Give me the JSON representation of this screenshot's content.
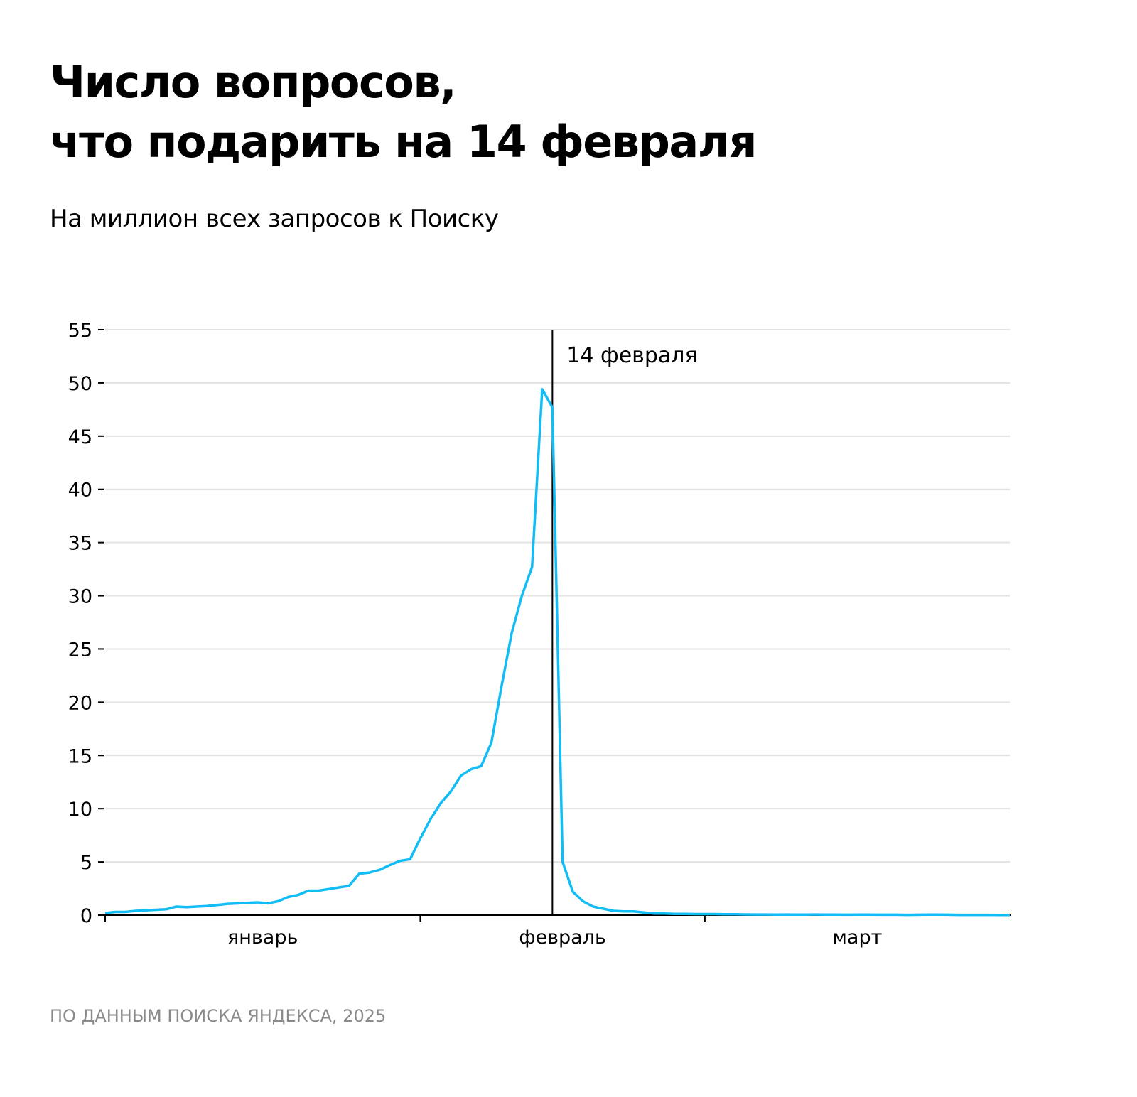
{
  "header": {
    "title_line1": "Число вопросов,",
    "title_line2": "что подарить на 14 февраля",
    "subtitle": "На миллион всех запросов к Поиску"
  },
  "footer": {
    "source": "ПО ДАННЫМ ПОИСКА ЯНДЕКСА, 2025"
  },
  "colors": {
    "line": "#12bdf6",
    "grid": "#e3e3e3",
    "axis": "#000000"
  },
  "chart_data": {
    "type": "line",
    "title": "Число вопросов, что подарить на 14 февраля",
    "subtitle": "На миллион всех запросов к Поиску",
    "xlabel": "",
    "ylabel": "",
    "ylim": [
      0,
      55
    ],
    "yticks": [
      0,
      5,
      10,
      15,
      20,
      25,
      30,
      35,
      40,
      45,
      50,
      55
    ],
    "grid": true,
    "x_unit": "day (2025-01-01 .. 2025-03-31)",
    "months": [
      {
        "label": "январь",
        "days": 31
      },
      {
        "label": "февраль",
        "days": 28
      },
      {
        "label": "март",
        "days": 31
      }
    ],
    "annotation": {
      "label": "14 февраля",
      "day_index": 44
    },
    "series": [
      {
        "name": "Число вопросов",
        "values": [
          0.2,
          0.3,
          0.3,
          0.4,
          0.45,
          0.5,
          0.55,
          0.8,
          0.75,
          0.8,
          0.85,
          0.95,
          1.05,
          1.1,
          1.15,
          1.2,
          1.1,
          1.3,
          1.7,
          1.9,
          2.3,
          2.3,
          2.45,
          2.6,
          2.75,
          3.9,
          4.0,
          4.25,
          4.7,
          5.1,
          5.25,
          7.2,
          9.0,
          10.5,
          11.6,
          13.1,
          13.7,
          14.0,
          16.2,
          21.5,
          26.5,
          30.0,
          32.7,
          49.4,
          47.7,
          5.0,
          2.2,
          1.3,
          0.8,
          0.6,
          0.4,
          0.35,
          0.35,
          0.25,
          0.15,
          0.15,
          0.12,
          0.12,
          0.1,
          0.1,
          0.1,
          0.08,
          0.08,
          0.07,
          0.06,
          0.06,
          0.05,
          0.06,
          0.05,
          0.05,
          0.06,
          0.05,
          0.05,
          0.04,
          0.05,
          0.05,
          0.04,
          0.04,
          0.04,
          0.03,
          0.04,
          0.05,
          0.05,
          0.04,
          0.03,
          0.03,
          0.03,
          0.03,
          0.02,
          0.02
        ]
      }
    ]
  }
}
